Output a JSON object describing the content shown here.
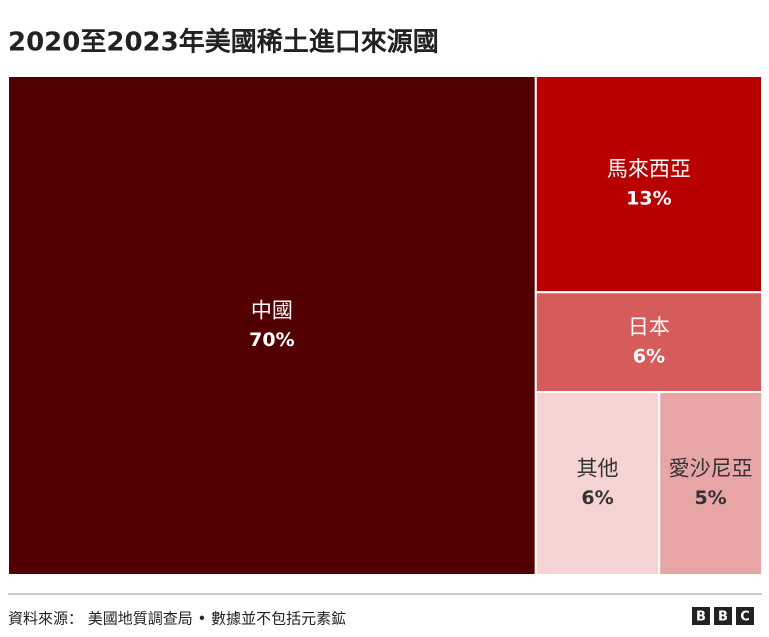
{
  "chart_data": {
    "type": "treemap",
    "title": "2020至2023年美國稀土進口來源國",
    "categories": [
      "中國",
      "馬來西亞",
      "日本",
      "其他",
      "愛沙尼亞"
    ],
    "values": [
      70,
      13,
      6,
      6,
      5
    ],
    "value_labels": [
      "70%",
      "13%",
      "6%",
      "6%",
      "5%"
    ],
    "colors": [
      "#530003",
      "#b80000",
      "#d65c5c",
      "#f6d3d3",
      "#e8a5a5"
    ],
    "label_colors": [
      "#ffffff",
      "#ffffff",
      "#ffffff",
      "#333333",
      "#333333"
    ]
  },
  "footer": {
    "source": "資料來源：  美國地質調查局 • 數據並不包括元素鉱",
    "logo": [
      "B",
      "B",
      "C"
    ]
  }
}
